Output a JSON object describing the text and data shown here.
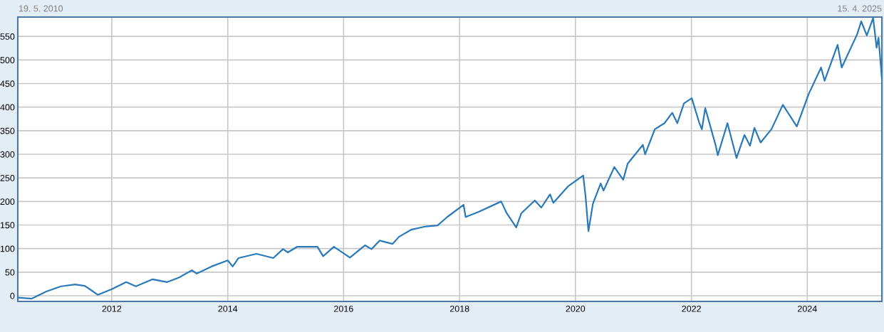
{
  "chart_data": {
    "type": "line",
    "x": [
      "2010-05-19",
      "2010-08-15",
      "2010-11-15",
      "2011-02-15",
      "2011-05-15",
      "2011-07-15",
      "2011-08-15",
      "2011-10-05",
      "2012-01-01",
      "2012-04-01",
      "2012-06-01",
      "2012-09-15",
      "2012-12-15",
      "2013-03-01",
      "2013-05-20",
      "2013-06-20",
      "2013-09-20",
      "2014-01-01",
      "2014-02-01",
      "2014-03-10",
      "2014-07-01",
      "2014-10-15",
      "2014-12-15",
      "2015-01-15",
      "2015-03-15",
      "2015-05-15",
      "2015-07-20",
      "2015-08-25",
      "2015-11-01",
      "2016-02-10",
      "2016-05-15",
      "2016-06-25",
      "2016-08-15",
      "2016-11-05",
      "2016-12-15",
      "2017-03-01",
      "2017-06-01",
      "2017-08-15",
      "2017-10-15",
      "2018-01-26",
      "2018-02-08",
      "2018-05-01",
      "2018-09-20",
      "2018-10-25",
      "2018-12-24",
      "2019-01-25",
      "2019-04-20",
      "2019-05-31",
      "2019-07-25",
      "2019-08-15",
      "2019-11-15",
      "2020-02-19",
      "2020-03-05",
      "2020-03-23",
      "2020-04-20",
      "2020-06-08",
      "2020-06-26",
      "2020-09-02",
      "2020-10-28",
      "2020-11-25",
      "2021-03-01",
      "2021-03-15",
      "2021-05-15",
      "2021-07-15",
      "2021-09-02",
      "2021-10-04",
      "2021-11-15",
      "2022-01-03",
      "2022-02-20",
      "2022-03-08",
      "2022-03-29",
      "2022-06-01",
      "2022-06-16",
      "2022-08-16",
      "2022-10-12",
      "2022-12-01",
      "2023-01-05",
      "2023-02-02",
      "2023-03-13",
      "2023-05-20",
      "2023-07-31",
      "2023-10-27",
      "2024-01-10",
      "2024-03-28",
      "2024-04-19",
      "2024-07-10",
      "2024-08-05",
      "2024-11-11",
      "2024-12-06",
      "2025-01-10",
      "2025-02-19",
      "2025-03-13",
      "2025-03-25",
      "2025-04-15"
    ],
    "series": [
      {
        "color": "#2a7ab9",
        "values": [
          -4,
          -6,
          9,
          20,
          24,
          21,
          14,
          2,
          14,
          29,
          20,
          35,
          29,
          39,
          54,
          47,
          62,
          75,
          62,
          80,
          89,
          80,
          99,
          92,
          104,
          104,
          104,
          84,
          104,
          81,
          107,
          99,
          117,
          110,
          125,
          140,
          147,
          149,
          167,
          193,
          167,
          178,
          200,
          175,
          145,
          175,
          202,
          187,
          215,
          197,
          232,
          255,
          210,
          137,
          195,
          238,
          223,
          273,
          246,
          280,
          320,
          300,
          353,
          366,
          388,
          366,
          408,
          419,
          366,
          353,
          398,
          321,
          298,
          366,
          292,
          341,
          318,
          356,
          325,
          353,
          405,
          359,
          428,
          484,
          456,
          532,
          484,
          555,
          582,
          552,
          589,
          526,
          547,
          461
        ]
      }
    ],
    "xlim": [
      "2010-05-19",
      "2025-04-15"
    ],
    "xticks": [
      {
        "value": "2012-01-01",
        "label": "2012"
      },
      {
        "value": "2014-01-01",
        "label": "2014"
      },
      {
        "value": "2016-01-01",
        "label": "2016"
      },
      {
        "value": "2018-01-01",
        "label": "2018"
      },
      {
        "value": "2020-01-01",
        "label": "2020"
      },
      {
        "value": "2022-01-01",
        "label": "2022"
      },
      {
        "value": "2024-01-01",
        "label": "2024"
      }
    ],
    "ylim": [
      -12,
      591
    ],
    "yticks": [
      0,
      50,
      100,
      150,
      200,
      250,
      300,
      350,
      400,
      450,
      500,
      550
    ],
    "grid": true,
    "annotations": [
      "19. 5. 2010",
      "15. 4. 2025"
    ]
  }
}
